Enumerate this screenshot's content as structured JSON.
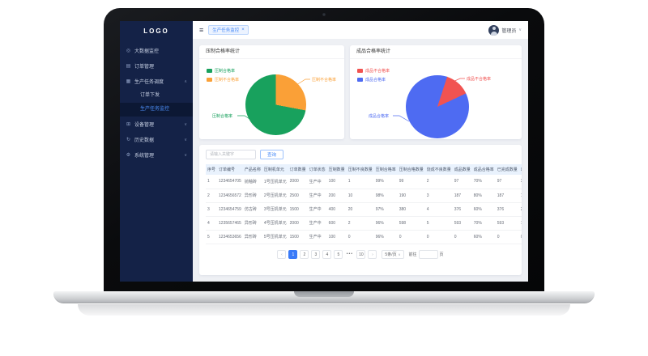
{
  "sidebar": {
    "logo": "LOGO",
    "items": [
      {
        "label": "大数据监控",
        "icon": "dashboard-icon",
        "glyph": "◎",
        "chevron": null
      },
      {
        "label": "订单管理",
        "icon": "order-icon",
        "glyph": "▤",
        "chevron": null
      },
      {
        "label": "生产任务调度",
        "icon": "schedule-icon",
        "glyph": "▦",
        "chevron": "up",
        "children": [
          {
            "label": "订单下发",
            "active": false
          },
          {
            "label": "生产任务监控",
            "active": true
          }
        ]
      },
      {
        "label": "设备管理",
        "icon": "device-icon",
        "glyph": "⊞",
        "chevron": "down"
      },
      {
        "label": "历史数据",
        "icon": "history-icon",
        "glyph": "↻",
        "chevron": "down"
      },
      {
        "label": "系统管理",
        "icon": "system-icon",
        "glyph": "⚙",
        "chevron": "down"
      }
    ]
  },
  "topbar": {
    "fold_glyph": "≡",
    "tag_label": "生产任务监控",
    "tag_close": "×",
    "user_name": "管理员",
    "caret": "∨"
  },
  "chart_data": [
    {
      "type": "pie",
      "title": "压制合格率统计",
      "start_angle_deg": 0,
      "slices": [
        {
          "label": "压制不合格率",
          "value": 28,
          "color": "#faa037"
        },
        {
          "label": "压制合格率",
          "value": 72,
          "color": "#18a15d"
        }
      ],
      "legend": [
        {
          "label": "压制合格率",
          "color": "#18a15d"
        },
        {
          "label": "压制不合格率",
          "color": "#faa037"
        }
      ],
      "legend_position": "top-left"
    },
    {
      "type": "pie",
      "title": "成品合格率统计",
      "start_angle_deg": 18,
      "slices": [
        {
          "label": "成品不合格率",
          "value": 13,
          "color": "#f15351"
        },
        {
          "label": "成品合格率",
          "value": 87,
          "color": "#4e6bf2"
        }
      ],
      "legend": [
        {
          "label": "成品不合格率",
          "color": "#f15351"
        },
        {
          "label": "成品合格率",
          "color": "#4e6bf2"
        }
      ],
      "legend_position": "top-left"
    }
  ],
  "search": {
    "placeholder": "请输入关键字",
    "button_label": "查询"
  },
  "table": {
    "headers": [
      "序号",
      "订单编号",
      "产品名称",
      "压制机单元",
      "订单数量",
      "订单状态",
      "压制数量",
      "压制不良数量",
      "压制合格率",
      "压制合格数量",
      "烧成不良数量",
      "成品数量",
      "成品合格率",
      "已完成数量",
      "出货数量"
    ],
    "rows": [
      [
        "1",
        "1234654705",
        "抛釉砖",
        "1号压机单元",
        "2000",
        "生产中",
        "100",
        "1",
        "99%",
        "99",
        "2",
        "97",
        "70%",
        "97",
        "3"
      ],
      [
        "2",
        "1234656572",
        "异形砖",
        "2号压机单元",
        "2500",
        "生产中",
        "200",
        "10",
        "98%",
        "190",
        "3",
        "187",
        "80%",
        "187",
        "13"
      ],
      [
        "3",
        "1234654759",
        "仿古砖",
        "3号压机单元",
        "1500",
        "生产中",
        "400",
        "20",
        "97%",
        "380",
        "4",
        "376",
        "60%",
        "376",
        "24"
      ],
      [
        "4",
        "1235657465",
        "异形砖",
        "4号压机单元",
        "2000",
        "生产中",
        "600",
        "2",
        "96%",
        "598",
        "5",
        "593",
        "70%",
        "593",
        "7"
      ],
      [
        "5",
        "1234653656",
        "异形砖",
        "5号压机单元",
        "1500",
        "生产中",
        "100",
        "0",
        "96%",
        "0",
        "0",
        "0",
        "60%",
        "0",
        "0"
      ]
    ]
  },
  "pagination": {
    "prev_label": "‹",
    "next_label": "›",
    "pages": [
      "1",
      "2",
      "3",
      "4",
      "5",
      "•••",
      "10"
    ],
    "active_page": "1",
    "page_size_label": "5条/页",
    "page_size_caret": "∨",
    "goto_label": "前往",
    "goto_value": "",
    "goto_unit": "页"
  }
}
